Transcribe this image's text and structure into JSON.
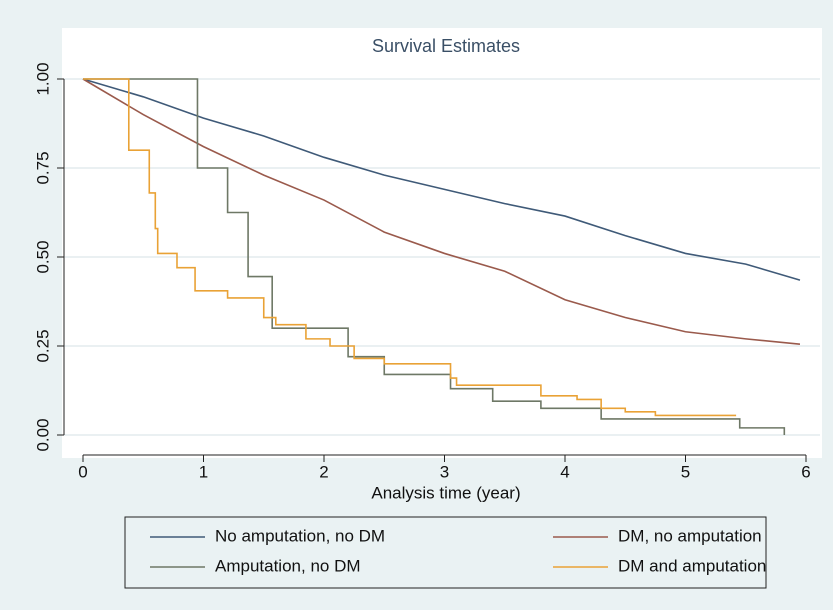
{
  "chart_data": {
    "type": "line",
    "title": "Survival Estimates",
    "x_label": "Analysis time (year)",
    "xlim": [
      0,
      6
    ],
    "xticks": [
      0,
      1,
      2,
      3,
      4,
      5,
      6
    ],
    "ylim": [
      0,
      1
    ],
    "yticks": [
      {
        "value": 0,
        "label": "0.00"
      },
      {
        "value": 0.25,
        "label": "0.25"
      },
      {
        "value": 0.5,
        "label": "0.50"
      },
      {
        "value": 0.75,
        "label": "0.75"
      },
      {
        "value": 1,
        "label": "1.00"
      }
    ],
    "grid": true,
    "legend": "bottom",
    "series": [
      {
        "name": "No amputation, no DM",
        "color": "#3f5a78",
        "step": false,
        "x": [
          0,
          0.5,
          1,
          1.5,
          2,
          2.5,
          3,
          3.5,
          4,
          4.5,
          5,
          5.5,
          5.95
        ],
        "values": [
          1,
          0.95,
          0.89,
          0.84,
          0.78,
          0.73,
          0.69,
          0.65,
          0.615,
          0.56,
          0.51,
          0.48,
          0.435
        ]
      },
      {
        "name": "DM, no amputation",
        "color": "#9a5a4c",
        "step": false,
        "x": [
          0,
          0.5,
          1,
          1.5,
          2,
          2.5,
          3,
          3.5,
          4,
          4.5,
          5,
          5.5,
          5.95
        ],
        "values": [
          1,
          0.9,
          0.81,
          0.73,
          0.66,
          0.57,
          0.51,
          0.46,
          0.38,
          0.33,
          0.29,
          0.27,
          0.255
        ]
      },
      {
        "name": "Amputation, no DM",
        "color": "#6e7866",
        "step": true,
        "x": [
          0,
          0.95,
          1.2,
          1.37,
          1.57,
          2.2,
          2.5,
          3.05,
          3.4,
          3.8,
          4.3,
          5.45,
          5.82
        ],
        "values": [
          1,
          0.75,
          0.625,
          0.445,
          0.3,
          0.22,
          0.17,
          0.13,
          0.095,
          0.075,
          0.045,
          0.02,
          0
        ]
      },
      {
        "name": "DM and amputation",
        "color": "#e9a236",
        "step": true,
        "x": [
          0,
          0.38,
          0.55,
          0.6,
          0.62,
          0.78,
          0.93,
          1.2,
          1.5,
          1.6,
          1.85,
          2.05,
          2.25,
          2.5,
          3.05,
          3.1,
          3.8,
          4.1,
          4.3,
          4.5,
          4.75,
          5.42
        ],
        "values": [
          1,
          0.8,
          0.68,
          0.58,
          0.51,
          0.47,
          0.405,
          0.385,
          0.33,
          0.31,
          0.27,
          0.25,
          0.215,
          0.2,
          0.16,
          0.14,
          0.11,
          0.1,
          0.075,
          0.065,
          0.055,
          0.055
        ]
      }
    ]
  }
}
